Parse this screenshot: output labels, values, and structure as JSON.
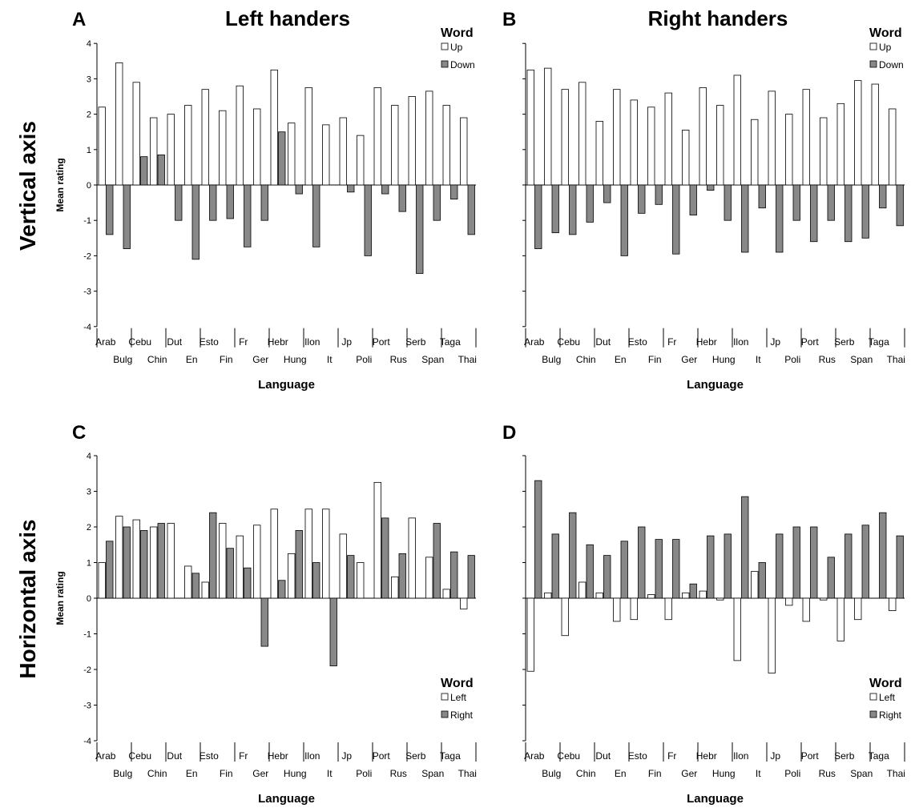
{
  "row_labels": [
    "Vertical axis",
    "Horizontal axis"
  ],
  "chart_data": [
    {
      "panel_letter": "A",
      "title": "Left handers",
      "type": "bar",
      "ylabel": "Mean rating",
      "xlabel": "Language",
      "ylim": [
        -4,
        4
      ],
      "yticks": [
        -4,
        -3,
        -2,
        -1,
        0,
        1,
        2,
        3,
        4
      ],
      "legend": {
        "title": "Word",
        "position": "top-right"
      },
      "categories": [
        "Arab",
        "Bulg",
        "Cebu",
        "Chin",
        "Dut",
        "En",
        "Esto",
        "Fin",
        "Fr",
        "Ger",
        "Hebr",
        "Hung",
        "Ilon",
        "It",
        "Jp",
        "Poli",
        "Port",
        "Rus",
        "Serb",
        "Span",
        "Taga",
        "Thai"
      ],
      "series": [
        {
          "name": "Up",
          "color": "#ffffff",
          "values": [
            2.2,
            3.45,
            2.9,
            1.9,
            2.0,
            2.25,
            2.7,
            2.1,
            2.8,
            2.15,
            3.25,
            1.75,
            2.75,
            1.7,
            1.9,
            1.4,
            2.75,
            2.25,
            2.5,
            2.65,
            2.25,
            1.9
          ]
        },
        {
          "name": "Down",
          "color": "#888888",
          "values": [
            -1.4,
            -1.8,
            0.8,
            0.85,
            -1.0,
            -2.1,
            -1.0,
            -0.95,
            -1.75,
            -1.0,
            1.5,
            -0.25,
            -1.75,
            0.0,
            -0.2,
            -2.0,
            -0.25,
            -0.75,
            -2.5,
            -1.0,
            -0.4,
            -1.4
          ]
        }
      ]
    },
    {
      "panel_letter": "B",
      "title": "Right handers",
      "type": "bar",
      "ylabel": "",
      "xlabel": "Language",
      "ylim": [
        -4,
        4
      ],
      "legend": {
        "title": "Word",
        "position": "top-right"
      },
      "categories": [
        "Arab",
        "Bulg",
        "Cebu",
        "Chin",
        "Dut",
        "En",
        "Esto",
        "Fin",
        "Fr",
        "Ger",
        "Hebr",
        "Hung",
        "Ilon",
        "It",
        "Jp",
        "Poli",
        "Port",
        "Rus",
        "Serb",
        "Span",
        "Taga",
        "Thai"
      ],
      "series": [
        {
          "name": "Up",
          "color": "#ffffff",
          "values": [
            3.25,
            3.3,
            2.7,
            2.9,
            1.8,
            2.7,
            2.4,
            2.2,
            2.6,
            1.55,
            2.75,
            2.25,
            3.1,
            1.85,
            2.65,
            2.0,
            2.7,
            1.9,
            2.3,
            2.95,
            2.85,
            2.15
          ]
        },
        {
          "name": "Down",
          "color": "#888888",
          "values": [
            -1.8,
            -1.35,
            -1.4,
            -1.05,
            -0.5,
            -2.0,
            -0.8,
            -0.55,
            -1.95,
            -0.85,
            -0.15,
            -1.0,
            -1.9,
            -0.65,
            -1.9,
            -1.0,
            -1.6,
            -1.0,
            -1.6,
            -1.5,
            -0.65,
            -1.15
          ]
        }
      ]
    },
    {
      "panel_letter": "C",
      "title": "",
      "type": "bar",
      "ylabel": "Mean rating",
      "xlabel": "Language",
      "ylim": [
        -4,
        4
      ],
      "legend": {
        "title": "Word",
        "position": "bottom-right"
      },
      "categories": [
        "Arab",
        "Bulg",
        "Cebu",
        "Chin",
        "Dut",
        "En",
        "Esto",
        "Fin",
        "Fr",
        "Ger",
        "Hebr",
        "Hung",
        "Ilon",
        "It",
        "Jp",
        "Poli",
        "Port",
        "Rus",
        "Serb",
        "Span",
        "Taga",
        "Thai"
      ],
      "series": [
        {
          "name": "Left",
          "color": "#ffffff",
          "values": [
            1.0,
            2.3,
            2.2,
            2.0,
            2.1,
            0.9,
            0.45,
            2.1,
            1.75,
            2.05,
            2.5,
            1.25,
            2.5,
            2.5,
            1.8,
            1.0,
            3.25,
            0.6,
            2.25,
            1.15,
            0.25,
            -0.3
          ]
        },
        {
          "name": "Right",
          "color": "#888888",
          "values": [
            1.6,
            2.0,
            1.9,
            2.1,
            0.0,
            0.7,
            2.4,
            1.4,
            0.85,
            -1.35,
            0.5,
            1.9,
            1.0,
            -1.9,
            1.2,
            0.0,
            2.25,
            1.25,
            0.0,
            2.1,
            1.3,
            1.2
          ]
        }
      ]
    },
    {
      "panel_letter": "D",
      "title": "",
      "type": "bar",
      "ylabel": "",
      "xlabel": "Language",
      "ylim": [
        -4,
        4
      ],
      "legend": {
        "title": "Word",
        "position": "bottom-right"
      },
      "categories": [
        "Arab",
        "Bulg",
        "Cebu",
        "Chin",
        "Dut",
        "En",
        "Esto",
        "Fin",
        "Fr",
        "Ger",
        "Hebr",
        "Hung",
        "Ilon",
        "It",
        "Jp",
        "Poli",
        "Port",
        "Rus",
        "Serb",
        "Span",
        "Taga",
        "Thai"
      ],
      "series": [
        {
          "name": "Left",
          "color": "#ffffff",
          "values": [
            -2.05,
            0.15,
            -1.05,
            0.45,
            0.15,
            -0.65,
            -0.6,
            0.1,
            -0.6,
            0.15,
            0.2,
            -0.05,
            -1.75,
            0.75,
            -2.1,
            -0.2,
            -0.65,
            -0.05,
            -1.2,
            -0.6,
            0.0,
            -0.35
          ]
        },
        {
          "name": "Right",
          "color": "#888888",
          "values": [
            3.3,
            1.8,
            2.4,
            1.5,
            1.2,
            1.6,
            2.0,
            1.65,
            1.65,
            0.4,
            1.75,
            1.8,
            2.85,
            1.0,
            1.8,
            2.0,
            2.0,
            1.15,
            1.8,
            2.05,
            2.4,
            1.75
          ]
        }
      ]
    }
  ]
}
